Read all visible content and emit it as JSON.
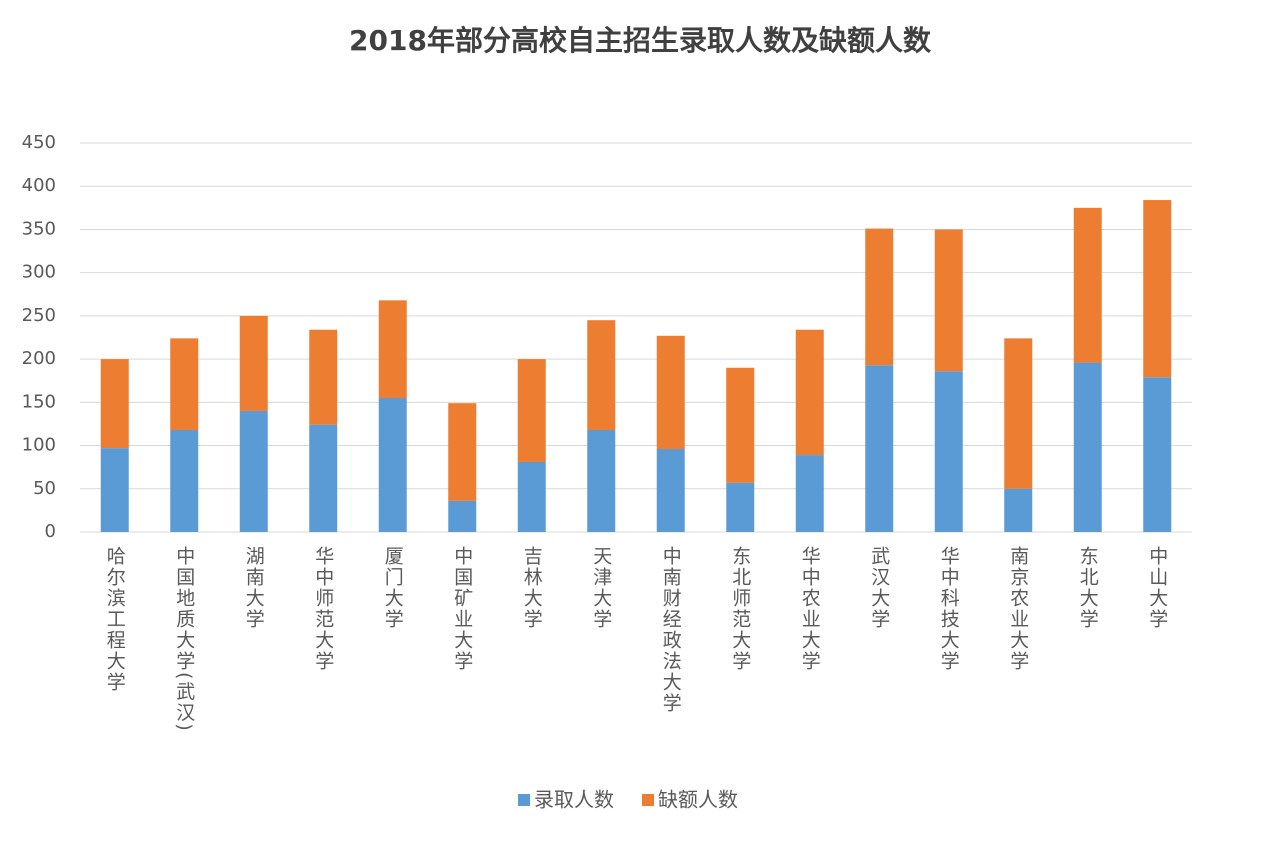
{
  "chart_data": {
    "type": "stacked_bar",
    "title": "2018年部分高校自主招生录取人数及缺额人数",
    "categories": [
      "哈尔滨工程大学",
      "中国地质大学(武汉)",
      "湖南大学",
      "华中师范大学",
      "厦门大学",
      "中国矿业大学",
      "吉林大学",
      "天津大学",
      "中南财经政法大学",
      "东北师范大学",
      "华中农业大学",
      "武汉大学",
      "华中科技大学",
      "南京农业大学",
      "东北大学",
      "中山大学"
    ],
    "series": [
      {
        "name": "录取人数",
        "color": "#5b9bd5",
        "values": [
          97,
          118,
          140,
          124,
          155,
          36,
          81,
          118,
          96,
          57,
          89,
          193,
          186,
          50,
          196,
          179
        ]
      },
      {
        "name": "缺额人数",
        "color": "#ed7d31",
        "values": [
          103,
          106,
          110,
          110,
          113,
          113,
          119,
          127,
          131,
          133,
          145,
          158,
          164,
          174,
          179,
          205
        ]
      }
    ],
    "ylim": [
      0,
      450
    ],
    "yticks": [
      0,
      50,
      100,
      150,
      200,
      250,
      300,
      350,
      400,
      450
    ],
    "grid": true,
    "legend": "bottom"
  }
}
